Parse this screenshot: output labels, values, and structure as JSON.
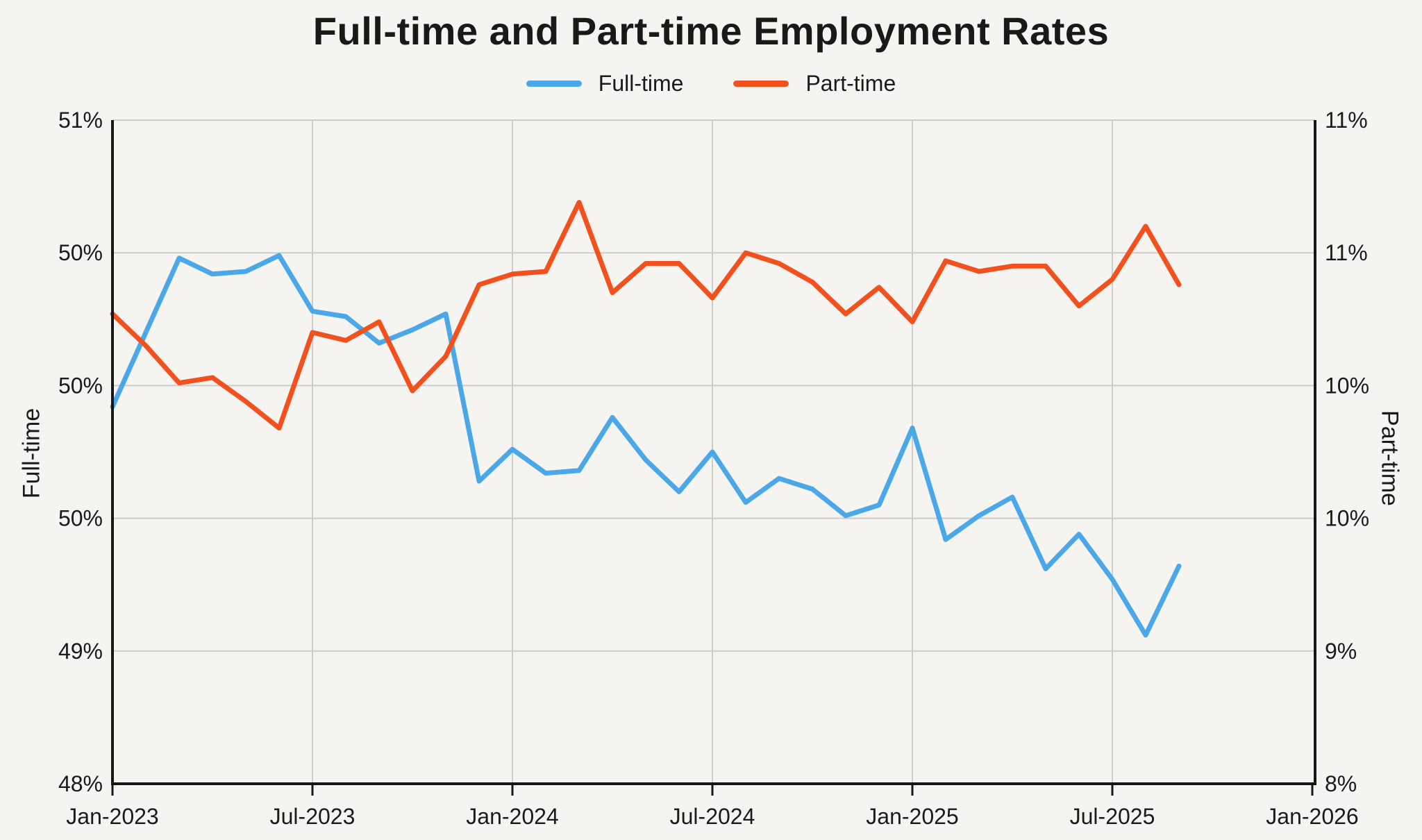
{
  "chart_data": {
    "type": "line",
    "title": "Full-time and Part-time Employment Rates",
    "x": [
      "Jan-2023",
      "Feb-2023",
      "Mar-2023",
      "Apr-2023",
      "May-2023",
      "Jun-2023",
      "Jul-2023",
      "Aug-2023",
      "Sep-2023",
      "Oct-2023",
      "Nov-2023",
      "Dec-2023",
      "Jan-2024",
      "Feb-2024",
      "Mar-2024",
      "Apr-2024",
      "May-2024",
      "Jun-2024",
      "Jul-2024",
      "Aug-2024",
      "Sep-2024",
      "Oct-2024",
      "Nov-2024",
      "Dec-2024",
      "Jan-2025",
      "Feb-2025",
      "Mar-2025",
      "Apr-2025",
      "May-2025",
      "Jun-2025",
      "Jul-2025",
      "Aug-2025",
      "Sep-2025"
    ],
    "series": [
      {
        "name": "Full-time",
        "axis": "left",
        "color": "#4AA8E8",
        "values": [
          49.92,
          50.2,
          50.48,
          50.42,
          50.43,
          50.49,
          50.28,
          50.26,
          50.16,
          50.21,
          50.27,
          49.64,
          49.76,
          49.67,
          49.68,
          49.88,
          49.72,
          49.6,
          49.75,
          49.56,
          49.65,
          49.61,
          49.51,
          49.55,
          49.84,
          49.42,
          49.51,
          49.58,
          49.31,
          49.44,
          49.27,
          49.06,
          49.32
        ]
      },
      {
        "name": "Part-time",
        "axis": "right",
        "color": "#F2511E",
        "values": [
          10.27,
          10.15,
          10.01,
          10.03,
          9.94,
          9.84,
          10.2,
          10.17,
          10.24,
          9.98,
          10.11,
          10.38,
          10.42,
          10.43,
          10.69,
          10.35,
          10.46,
          10.46,
          10.33,
          10.5,
          10.46,
          10.39,
          10.27,
          10.37,
          10.24,
          10.47,
          10.43,
          10.45,
          10.45,
          10.3,
          10.4,
          10.6,
          10.38
        ]
      }
    ],
    "left_axis": {
      "title": "Full-time",
      "range": [
        48.5,
        51.0
      ],
      "tick_values": [
        51,
        50.5,
        50,
        49.5,
        49,
        48.5
      ],
      "tick_labels": [
        "51%",
        "50%",
        "50%",
        "50%",
        "49%",
        "48%"
      ]
    },
    "right_axis": {
      "title": "Part-time",
      "range": [
        8.5,
        11.0
      ],
      "tick_values": [
        11,
        10.5,
        10,
        9.5,
        9,
        8.5
      ],
      "tick_labels": [
        "11%",
        "11%",
        "10%",
        "10%",
        "9%",
        "8%"
      ]
    },
    "x_axis": {
      "tick_month_indices": [
        0,
        6,
        12,
        18,
        24,
        30,
        36
      ],
      "tick_labels": [
        "Jan-2023",
        "Jul-2023",
        "Jan-2024",
        "Jul-2024",
        "Jan-2025",
        "Jul-2025",
        "Jan-2026"
      ]
    },
    "grid": true,
    "legend_position": "top"
  },
  "legend": {
    "items": [
      {
        "label": "Full-time",
        "color": "#4AA8E8"
      },
      {
        "label": "Part-time",
        "color": "#F2511E"
      }
    ]
  },
  "colors": {
    "background": "#F5F4F1",
    "gridline": "#CDCCC9",
    "spine": "#161616",
    "text": "#1A1A1A",
    "full_time_line": "#4AA8E8",
    "part_time_line": "#F2511E"
  }
}
